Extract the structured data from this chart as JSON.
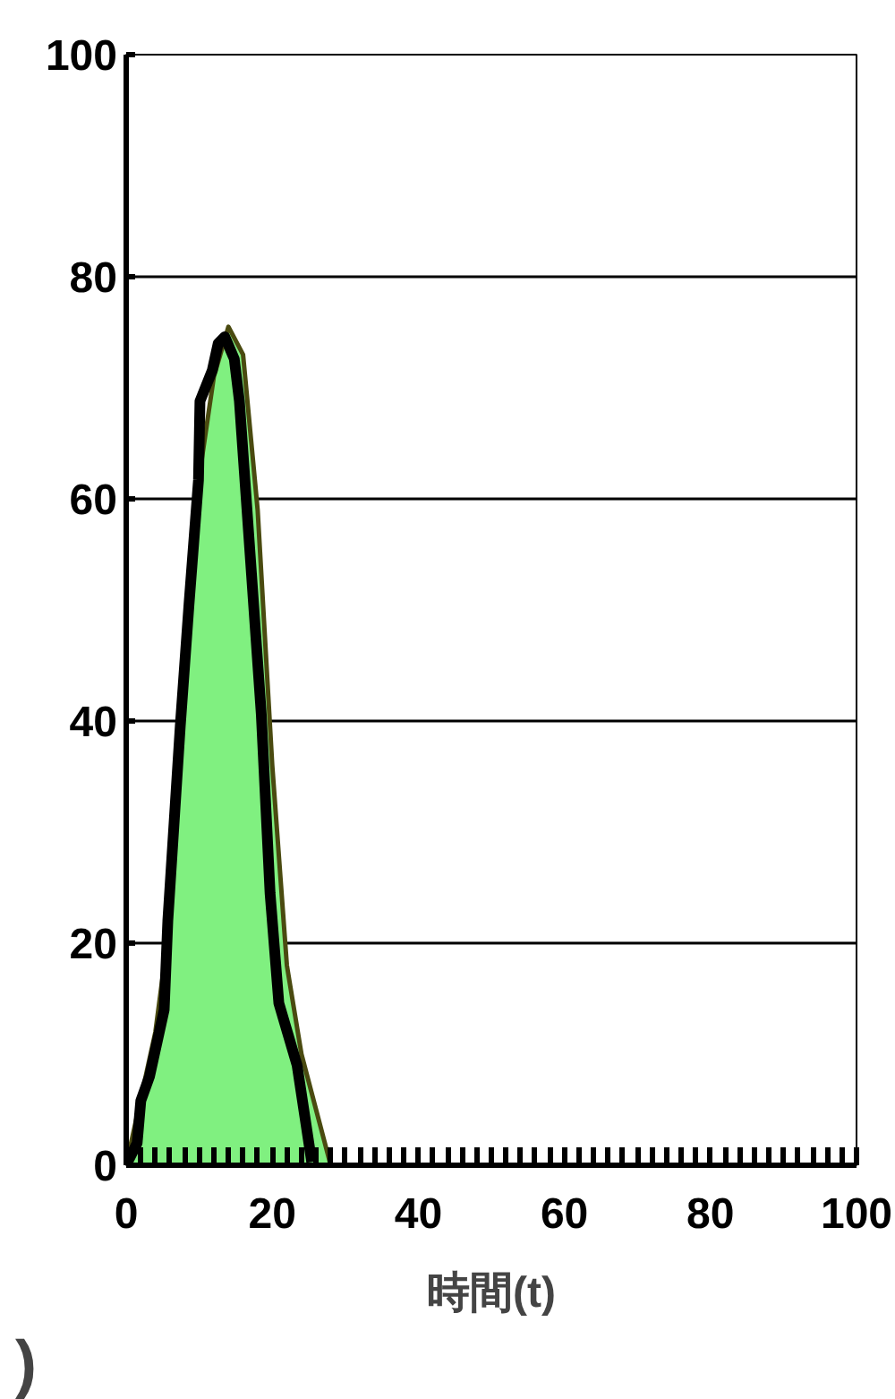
{
  "chart_data": {
    "type": "area",
    "xlabel": "時間(t)",
    "annotations": [
      ")"
    ],
    "xlim": [
      0,
      100
    ],
    "ylim": [
      0,
      100
    ],
    "xticks": [
      0,
      {
        "value": 2,
        "label": null
      },
      {
        "value": 4,
        "label": null
      },
      {
        "value": 6,
        "label": null
      },
      {
        "value": 8,
        "label": null
      },
      {
        "value": 10,
        "label": null
      },
      {
        "value": 12,
        "label": null
      },
      {
        "value": 14,
        "label": null
      },
      {
        "value": 16,
        "label": null
      },
      {
        "value": 18,
        "label": null
      },
      20,
      {
        "value": 22,
        "label": null
      },
      {
        "value": 24,
        "label": null
      },
      {
        "value": 26,
        "label": null
      },
      {
        "value": 28,
        "label": null
      },
      {
        "value": 30,
        "label": null
      },
      {
        "value": 32,
        "label": null
      },
      {
        "value": 34,
        "label": null
      },
      {
        "value": 36,
        "label": null
      },
      {
        "value": 38,
        "label": null
      },
      40,
      {
        "value": 42,
        "label": null
      },
      {
        "value": 44,
        "label": null
      },
      {
        "value": 46,
        "label": null
      },
      {
        "value": 48,
        "label": null
      },
      {
        "value": 50,
        "label": null
      },
      {
        "value": 52,
        "label": null
      },
      {
        "value": 54,
        "label": null
      },
      {
        "value": 56,
        "label": null
      },
      {
        "value": 58,
        "label": null
      },
      60,
      {
        "value": 62,
        "label": null
      },
      {
        "value": 64,
        "label": null
      },
      {
        "value": 66,
        "label": null
      },
      {
        "value": 68,
        "label": null
      },
      {
        "value": 70,
        "label": null
      },
      {
        "value": 72,
        "label": null
      },
      {
        "value": 74,
        "label": null
      },
      {
        "value": 76,
        "label": null
      },
      {
        "value": 78,
        "label": null
      },
      80,
      {
        "value": 82,
        "label": null
      },
      {
        "value": 84,
        "label": null
      },
      {
        "value": 86,
        "label": null
      },
      {
        "value": 88,
        "label": null
      },
      {
        "value": 90,
        "label": null
      },
      {
        "value": 92,
        "label": null
      },
      {
        "value": 94,
        "label": null
      },
      {
        "value": 96,
        "label": null
      },
      {
        "value": 98,
        "label": null
      },
      100
    ],
    "yticks": [
      0,
      20,
      40,
      60,
      80,
      100
    ],
    "grid": "y",
    "series": [
      {
        "color": "#80f080",
        "x": [
          0,
          2,
          4,
          6,
          8,
          10,
          12,
          14,
          16,
          18,
          20,
          22,
          24,
          26,
          28
        ],
        "values": [
          0,
          6,
          12,
          22,
          45,
          62,
          71,
          75.5,
          73,
          59,
          36,
          18,
          10,
          5,
          0
        ]
      },
      {
        "type": "line",
        "color": "#000000",
        "x": [
          0.2,
          1.5,
          2,
          3.2,
          5.2,
          5.7,
          7.4,
          8.6,
          9.9,
          10.1,
          11.8,
          12.6,
          13.5,
          14.8,
          15.5,
          18.5,
          19.7,
          20.9,
          23.4,
          25.4
        ],
        "values": [
          0.3,
          2,
          5.8,
          8,
          14,
          22,
          39.5,
          50.5,
          61.7,
          68.8,
          71.6,
          74,
          74.6,
          72.6,
          68.8,
          40.6,
          24.5,
          14.6,
          9,
          0.3
        ]
      }
    ]
  }
}
